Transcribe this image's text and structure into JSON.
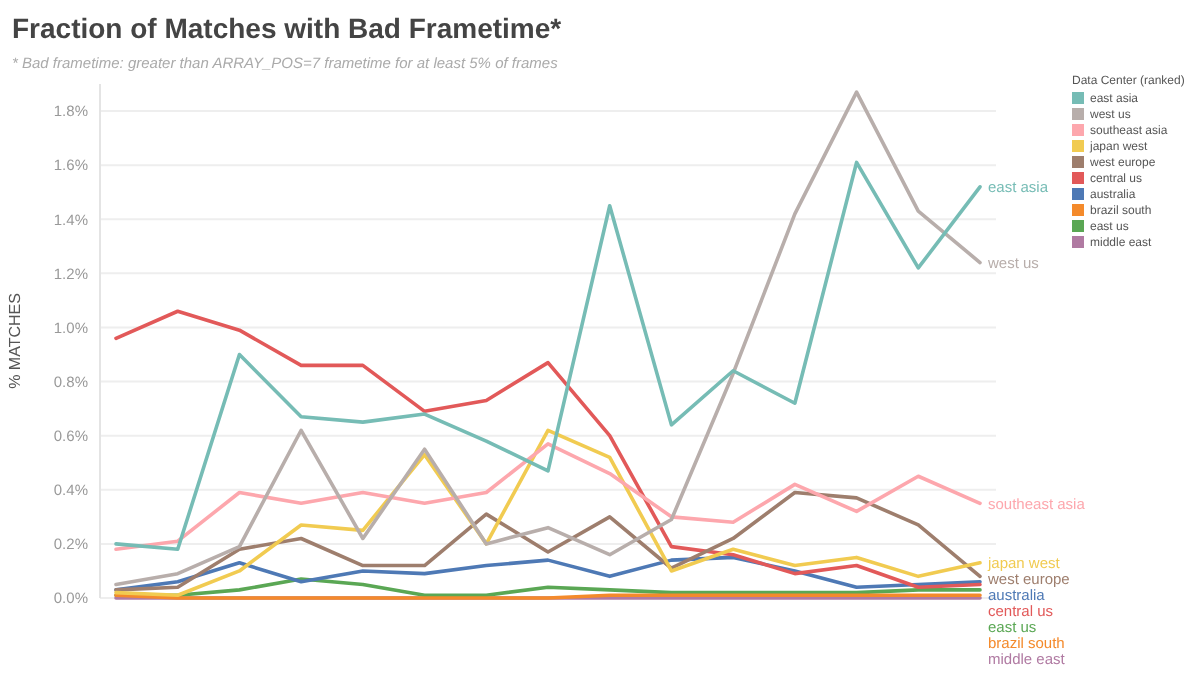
{
  "chart_data": {
    "type": "line",
    "title": "Fraction of Matches with Bad Frametime*",
    "subtitle": "* Bad frametime: greater than ARRAY_POS=7 frametime for at least 5% of frames",
    "ylabel": "% MATCHES",
    "legend_title": "Data Center (ranked)",
    "legend": "top right",
    "grid": "y",
    "tick_labels": "y",
    "categories": [
      null,
      null,
      null,
      null,
      null,
      null,
      null,
      null,
      null,
      null,
      null,
      null,
      null,
      null,
      null
    ],
    "ylim": [
      0,
      1.9
    ],
    "yticks": [
      {
        "value": 0,
        "label": "0.0%"
      },
      {
        "value": 0.2,
        "label": "0.2%"
      },
      {
        "value": 0.4,
        "label": "0.4%"
      },
      {
        "value": 0.6,
        "label": "0.6%"
      },
      {
        "value": 0.8,
        "label": "0.8%"
      },
      {
        "value": 1.0,
        "label": "1.0%"
      },
      {
        "value": 1.2,
        "label": "1.2%"
      },
      {
        "value": 1.4,
        "label": "1.4%"
      },
      {
        "value": 1.6,
        "label": "1.6%"
      },
      {
        "value": 1.8,
        "label": "1.8%"
      }
    ],
    "series": [
      {
        "name": "east asia",
        "color": "#76bcb5",
        "values": [
          0.2,
          0.18,
          0.9,
          0.67,
          0.65,
          0.68,
          0.58,
          0.47,
          1.45,
          0.64,
          0.84,
          0.72,
          1.61,
          1.22,
          1.52
        ]
      },
      {
        "name": "west us",
        "color": "#b8aeab",
        "values": [
          0.05,
          0.09,
          0.19,
          0.62,
          0.22,
          0.55,
          0.2,
          0.26,
          0.16,
          0.29,
          0.83,
          1.42,
          1.87,
          1.43,
          1.24
        ]
      },
      {
        "name": "southeast asia",
        "color": "#fda7ad",
        "values": [
          0.18,
          0.21,
          0.39,
          0.35,
          0.39,
          0.35,
          0.39,
          0.57,
          0.46,
          0.3,
          0.28,
          0.42,
          0.32,
          0.45,
          0.35
        ]
      },
      {
        "name": "japan west",
        "color": "#f1cb51",
        "values": [
          0.02,
          0.01,
          0.1,
          0.27,
          0.25,
          0.53,
          0.2,
          0.62,
          0.52,
          0.1,
          0.18,
          0.12,
          0.15,
          0.08,
          0.13
        ]
      },
      {
        "name": "west europe",
        "color": "#9e7e6d",
        "values": [
          0.03,
          0.04,
          0.18,
          0.22,
          0.12,
          0.12,
          0.31,
          0.17,
          0.3,
          0.11,
          0.22,
          0.39,
          0.37,
          0.27,
          0.08
        ]
      },
      {
        "name": "central us",
        "color": "#e25959",
        "values": [
          0.96,
          1.06,
          0.99,
          0.86,
          0.86,
          0.69,
          0.73,
          0.87,
          0.6,
          0.19,
          0.16,
          0.09,
          0.12,
          0.04,
          0.05
        ]
      },
      {
        "name": "australia",
        "color": "#4e79b5",
        "values": [
          0.03,
          0.06,
          0.13,
          0.06,
          0.1,
          0.09,
          0.12,
          0.14,
          0.08,
          0.14,
          0.15,
          0.1,
          0.04,
          0.05,
          0.06
        ]
      },
      {
        "name": "brazil south",
        "color": "#f48a2b",
        "values": [
          0.01,
          0.0,
          0.0,
          0.0,
          0.0,
          0.0,
          0.0,
          0.0,
          0.01,
          0.01,
          0.01,
          0.01,
          0.01,
          0.01,
          0.01
        ]
      },
      {
        "name": "east us",
        "color": "#5aa754",
        "values": [
          0.01,
          0.01,
          0.03,
          0.07,
          0.05,
          0.01,
          0.01,
          0.04,
          0.03,
          0.02,
          0.02,
          0.02,
          0.02,
          0.03,
          0.03
        ]
      },
      {
        "name": "middle east",
        "color": "#b07aa2",
        "values": [
          0.0,
          0.0,
          0.0,
          0.0,
          0.0,
          0.0,
          0.0,
          0.0,
          0.0,
          0.0,
          0.0,
          0.0,
          0.0,
          0.0,
          0.0
        ]
      }
    ]
  }
}
